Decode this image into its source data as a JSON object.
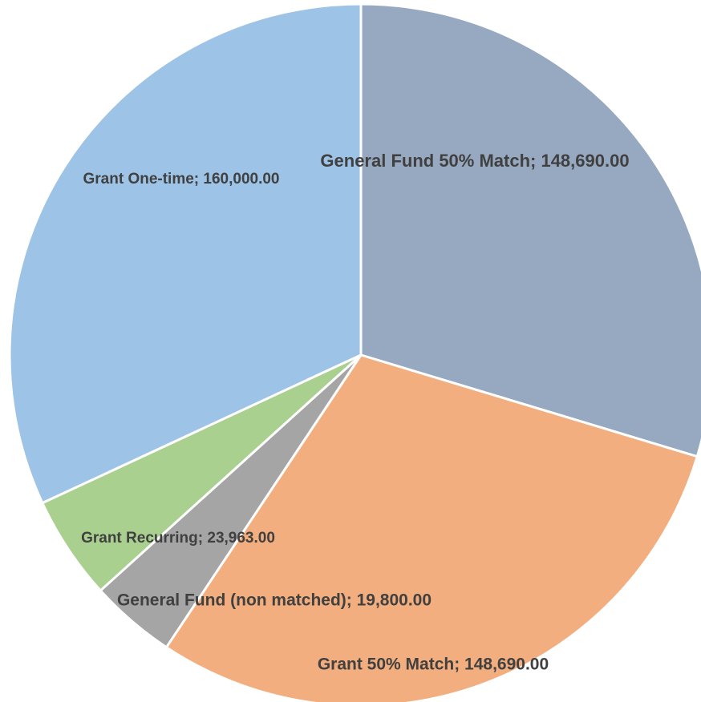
{
  "chart_data": {
    "type": "pie",
    "labels": [
      "General Fund 50% Match; 148,690.00",
      "Grant 50% Match; 148,690.00",
      "General Fund (non matched); 19,800.00",
      "Grant Recurring; 23,963.00",
      "Grant One-time; 160,000.00"
    ],
    "values": [
      148690,
      148690,
      19800,
      23963,
      160000
    ],
    "colors": [
      "#97a9c0",
      "#f2ae7e",
      "#a5a5a5",
      "#a9d08e",
      "#9dc3e6"
    ]
  }
}
